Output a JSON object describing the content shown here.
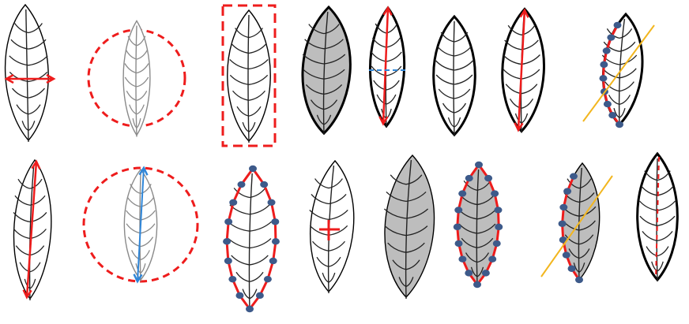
{
  "colors": {
    "outline": "#000000",
    "shaded_fill": "#bdbdbd",
    "measure_red": "#ee1c1c",
    "measure_blue": "#2f86d8",
    "landmark_fill": "#3d5a8a",
    "symmetry_line": "#f2b61f",
    "faded_outline": "#8a8a8a"
  },
  "figure": {
    "description_rows": 2,
    "panels": [
      {
        "id": "width-arrow",
        "overlay": "red-horizontal-double-arrow"
      },
      {
        "id": "bounding-circle",
        "overlay": "red-dashed-circle"
      },
      {
        "id": "bounding-rectangle",
        "overlay": "red-dashed-rectangle"
      },
      {
        "id": "filled-area",
        "overlay": "grey-fill"
      },
      {
        "id": "length-width-cross",
        "overlay": "red-length-arrow-and-blue-dashed-width"
      },
      {
        "id": "perimeter",
        "overlay": "thick-outline"
      },
      {
        "id": "length-in-perimeter",
        "overlay": "thick-outline-with-red-length-line"
      },
      {
        "id": "half-contour-landmarks-symmetry",
        "overlay": "landmarks-and-yellow-line"
      },
      {
        "id": "length-arrow",
        "overlay": "red-vertical-double-arrow"
      },
      {
        "id": "circle-with-diameter",
        "overlay": "red-dashed-circle-and-blue-arrow"
      },
      {
        "id": "full-contour-landmarks",
        "overlay": "red-contour-with-landmarks"
      },
      {
        "id": "centroid",
        "overlay": "red-cross"
      },
      {
        "id": "filled-area-plain",
        "overlay": "grey-fill"
      },
      {
        "id": "filled-with-landmarks",
        "overlay": "grey-fill-red-contour-landmarks"
      },
      {
        "id": "filled-half-landmarks-symmetry",
        "overlay": "grey-fill-landmarks-yellow-line"
      },
      {
        "id": "midline-dashed",
        "overlay": "thick-outline-red-dashed-midrib"
      }
    ]
  }
}
